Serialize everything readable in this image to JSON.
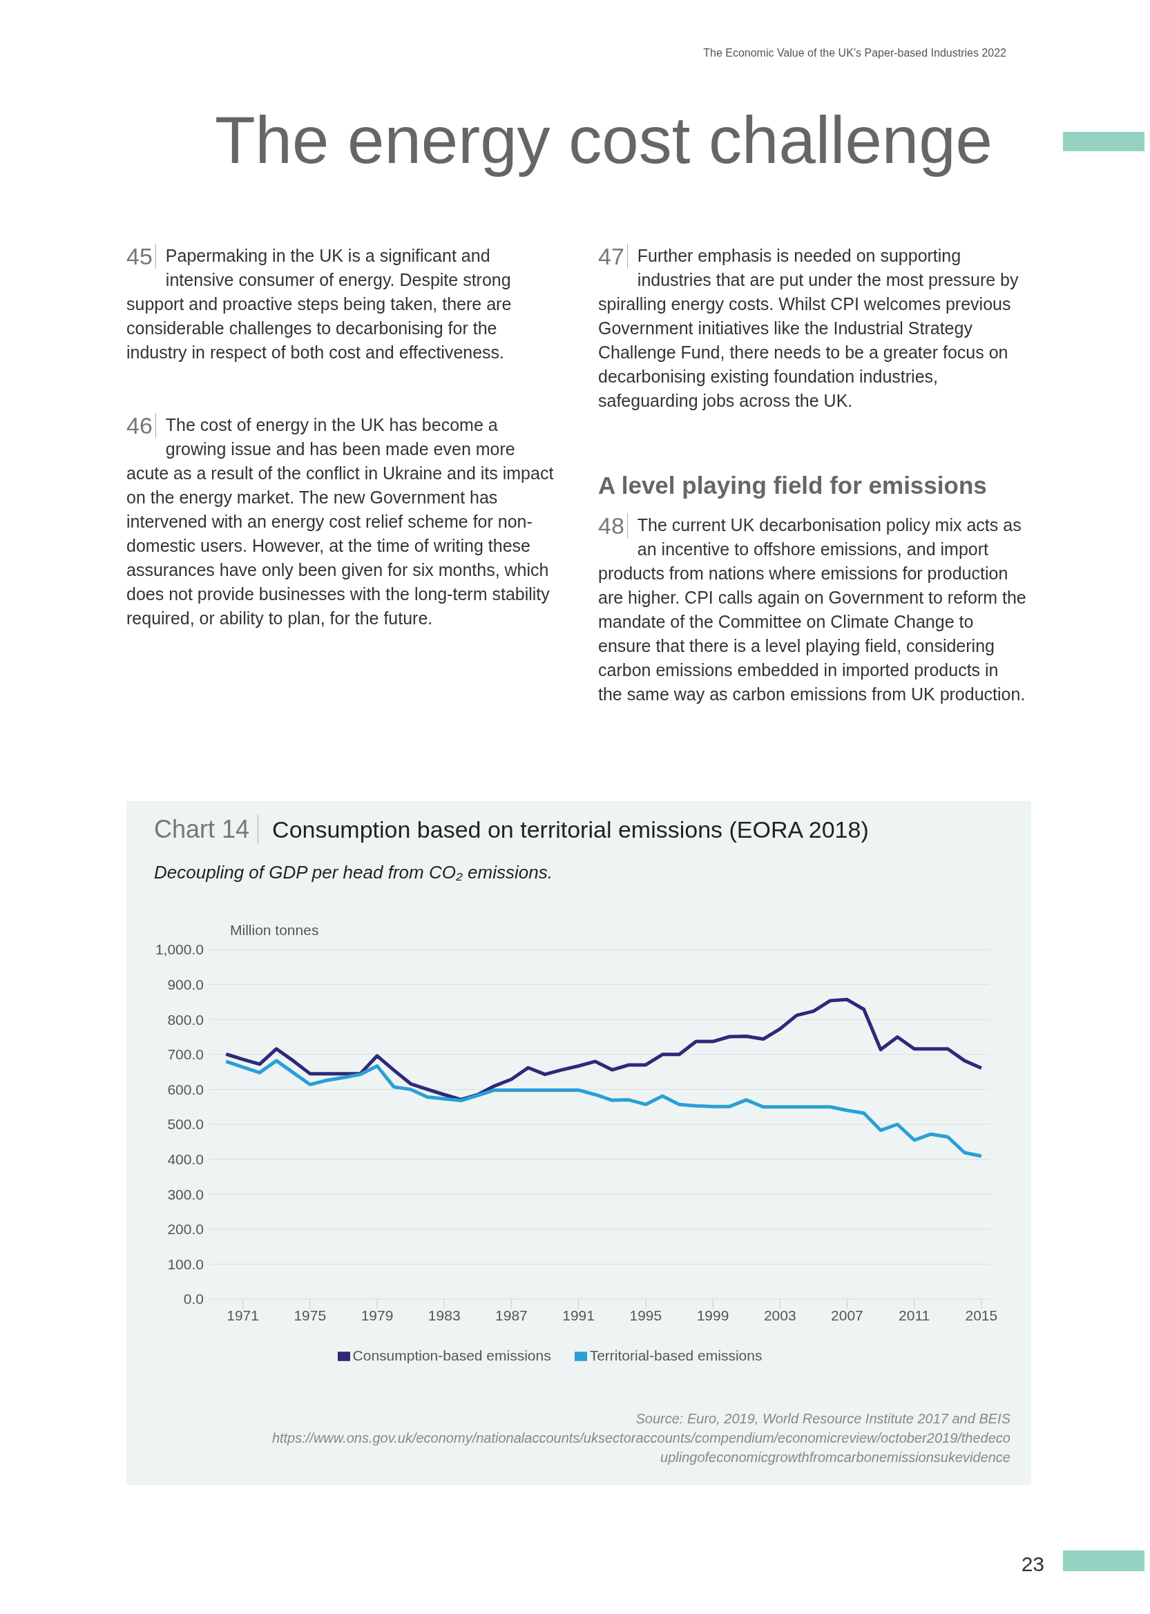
{
  "chart_data": {
    "type": "line",
    "title": "Consumption based on territorial emissions (EORA 2018)",
    "subtitle": "Decoupling of GDP per head from CO₂ emissions.",
    "ylabel": "Million tonnes",
    "annotations": [
      "The Economic Value of the UK’s Paper-based Industries 2022",
      "The energy cost challenge",
      "45",
      "Papermaking in the UK is a significant and intensive consumer of energy. Despite strong support and proactive steps being taken, there are considerable challenges to decarbonising for the industry in respect of both cost and effectiveness.",
      "46",
      "The cost of energy in the UK has become a growing issue and has been made even more acute as a result of the conflict in Ukraine and its impact on the energy market. The new Government has intervened with an energy cost relief scheme for non-domestic users. However, at the time of writing these assurances have only been given for six months, which does not provide businesses with the long-term stability required, or ability to plan, for the future.",
      "47",
      "Further emphasis is needed on supporting industries that are put under the most pressure by spiralling energy costs. Whilst CPI welcomes previous Government initiatives like the Industrial Strategy Challenge Fund, there needs to be a greater focus on decarbonising existing foundation industries, safeguarding jobs across the UK.",
      "A level playing field for emissions",
      "48",
      "The current UK decarbonisation policy mix acts as an incentive to offshore emissions, and import products from nations where emissions for production are higher. CPI calls again on Government to reform the mandate of the Committee on Climate Change to ensure that there is a level playing field, considering carbon emissions embedded in imported products in the same way as carbon emissions from UK production.",
      "Chart 14",
      "Source: Euro, 2019, World Resource Institute 2017 and BEIS",
      "https://www.ons.gov.uk/economy/nationalaccounts/uksectoraccounts/compendium/economicreview/october2019/thedecouplingofeconomicgrowthfromcarbonemissionsukevidence",
      "23"
    ],
    "x": [
      1970,
      1971,
      1972,
      1973,
      1974,
      1975,
      1976,
      1977,
      1978,
      1979,
      1980,
      1981,
      1982,
      1983,
      1984,
      1985,
      1986,
      1987,
      1988,
      1989,
      1990,
      1991,
      1992,
      1993,
      1994,
      1995,
      1996,
      1997,
      1998,
      1999,
      2000,
      2001,
      2002,
      2003,
      2004,
      2005,
      2006,
      2007,
      2008,
      2009,
      2010,
      2011,
      2012,
      2013,
      2014,
      2015
    ],
    "series": [
      {
        "name": "Consumption-based emissions",
        "color": "#2e2a78",
        "values": [
          701,
          686,
          672,
          716,
          682,
          645,
          645,
          645,
          645,
          696,
          655,
          616,
          600,
          585,
          571,
          585,
          610,
          629,
          662,
          643,
          656,
          667,
          680,
          656,
          670,
          670,
          700,
          700,
          737,
          737,
          751,
          752,
          744,
          773,
          812,
          824,
          854,
          857,
          829,
          714,
          750,
          716,
          716,
          716,
          682,
          661
        ]
      },
      {
        "name": "Territorial-based emissions",
        "color": "#2a9fd6",
        "values": [
          680,
          664,
          648,
          682,
          648,
          614,
          626,
          634,
          643,
          667,
          607,
          600,
          578,
          573,
          568,
          583,
          598,
          598,
          598,
          598,
          598,
          598,
          585,
          569,
          570,
          557,
          581,
          557,
          553,
          551,
          551,
          570,
          550,
          550,
          550,
          550,
          550,
          540,
          532,
          483,
          500,
          455,
          472,
          464,
          419,
          409
        ]
      }
    ],
    "xlim": [
      1969,
      2015.5
    ],
    "xticks": [
      1971,
      1975,
      1979,
      1983,
      1987,
      1991,
      1995,
      1999,
      2003,
      2007,
      2011,
      2015
    ],
    "ylim": [
      0,
      1000
    ],
    "yticks": [
      {
        "value": 0,
        "label": "0.0"
      },
      {
        "value": 100,
        "label": "100.0"
      },
      {
        "value": 200,
        "label": "200.0"
      },
      {
        "value": 300,
        "label": "300.0"
      },
      {
        "value": 400,
        "label": "400.0"
      },
      {
        "value": 500,
        "label": "500.0"
      },
      {
        "value": 600,
        "label": "600.0"
      },
      {
        "value": 700,
        "label": "700.0"
      },
      {
        "value": 800,
        "label": "800.0"
      },
      {
        "value": 900,
        "label": "900.0"
      },
      {
        "value": 1000,
        "label": "1,000.0"
      }
    ],
    "grid": "y",
    "legend": "bottom",
    "marker": "none",
    "line_style": "solid"
  }
}
